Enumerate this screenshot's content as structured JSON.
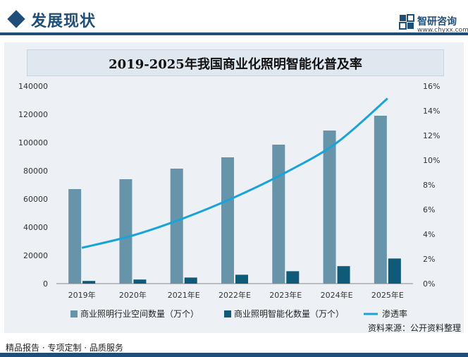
{
  "header": {
    "section_title": "发展现状",
    "logo_name": "智研咨询",
    "logo_url": "www.chyxx.com",
    "logo_icon": "chyxx-logo-icon"
  },
  "footer": {
    "slogan": "精品报告 · 专项定制 · 品质服务",
    "source": "资料来源：公开资料整理"
  },
  "colors": {
    "brand": "#1f4e79",
    "bar_space": "#6894aa",
    "bar_smart": "#0f5a78",
    "line_rate": "#1aa3d9"
  },
  "chart_data": {
    "type": "bar",
    "title": "2019-2025年我国商业化照明智能化普及率",
    "categories": [
      "2019年",
      "2020年",
      "2021年E",
      "2022年E",
      "2023年E",
      "2024年E",
      "2025年E"
    ],
    "series": [
      {
        "name": "商业照明行业空间数量（万个）",
        "type": "bar",
        "axis": "left",
        "values": [
          67000,
          74000,
          81500,
          89500,
          98500,
          108500,
          119000
        ]
      },
      {
        "name": "商业照明智能化数量（万个）",
        "type": "bar",
        "axis": "left",
        "values": [
          1900,
          2900,
          4300,
          6300,
          8800,
          12400,
          17800
        ]
      },
      {
        "name": "渗透率",
        "type": "line",
        "axis": "right",
        "values": [
          2.9,
          3.9,
          5.3,
          7.0,
          9.0,
          11.4,
          15.0
        ]
      }
    ],
    "y_left": {
      "min": 0,
      "max": 140000,
      "step": 20000,
      "ticks": [
        "0",
        "20000",
        "40000",
        "60000",
        "80000",
        "100000",
        "120000",
        "140000"
      ]
    },
    "y_right": {
      "min": 0,
      "max": 16,
      "step": 2,
      "ticks": [
        "0%",
        "2%",
        "4%",
        "6%",
        "8%",
        "10%",
        "12%",
        "14%",
        "16%"
      ]
    },
    "grid": false,
    "legend": "bottom"
  }
}
